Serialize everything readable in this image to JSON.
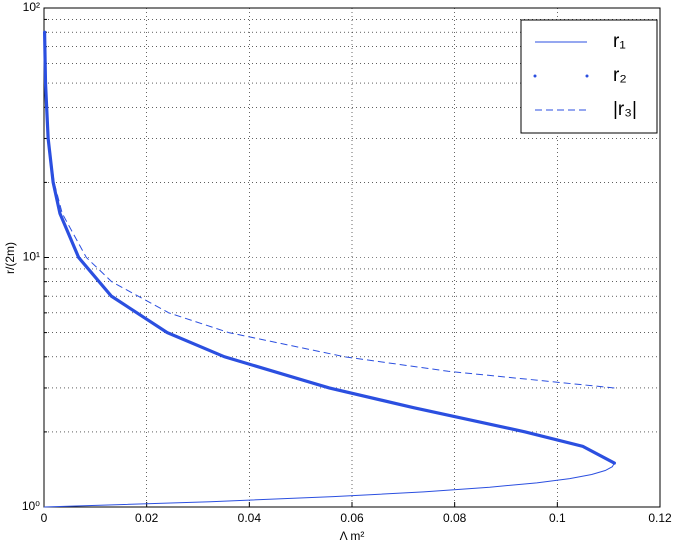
{
  "chart_data": {
    "type": "line",
    "xlabel": "Λ m²",
    "ylabel": "r/(2m)",
    "xlim": [
      0,
      0.12
    ],
    "xticks": [
      0,
      0.02,
      0.04,
      0.06,
      0.08,
      0.1,
      0.12
    ],
    "ylim": [
      1,
      100
    ],
    "ylog": true,
    "yticks": [
      {
        "value": 1,
        "label": "10⁰"
      },
      {
        "value": 10,
        "label": "10¹"
      },
      {
        "value": 100,
        "label": "10²"
      }
    ],
    "yminorticks": [
      2,
      3,
      4,
      5,
      6,
      7,
      8,
      9,
      20,
      30,
      40,
      50,
      60,
      70,
      80,
      90
    ],
    "grid": true,
    "legend": "upper right",
    "series": [
      {
        "name": "r₁",
        "color": "#2b4fe0",
        "style": "solid",
        "x": [
          0,
          0.0324,
          0.05635,
          0.07397,
          0.08681,
          0.096,
          0.10241,
          0.10669,
          0.10933,
          0.11071,
          0.11111
        ],
        "values": [
          1,
          1.05,
          1.1,
          1.15,
          1.2,
          1.25,
          1.3,
          1.35,
          1.4,
          1.45,
          1.5
        ]
      },
      {
        "name": "r₂",
        "color": "#2b4fe0",
        "style": "dotted",
        "x": [
          0.11111,
          0.10496,
          0.09375,
          0.072,
          0.05556,
          0.03516,
          0.024,
          0.01312,
          0.00675,
          0.00311,
          0.00178,
          0.000806,
          0.000294,
          0.000116
        ],
        "values": [
          1.5,
          1.75,
          2,
          2.5,
          3,
          4,
          5,
          7,
          10,
          15,
          20,
          30,
          50,
          80
        ]
      },
      {
        "name": "|r₃|",
        "color": "#2b4fe0",
        "style": "dashed",
        "x": [
          0.11111,
          0.07872,
          0.05859,
          0.036,
          0.02431,
          0.01318,
          0.00825,
          0.00356,
          0.00197,
          0.000861,
          0.000306,
          0.000119
        ],
        "values": [
          3,
          3.5,
          4,
          5,
          6,
          8,
          10,
          15,
          20,
          30,
          50,
          80
        ]
      }
    ]
  }
}
